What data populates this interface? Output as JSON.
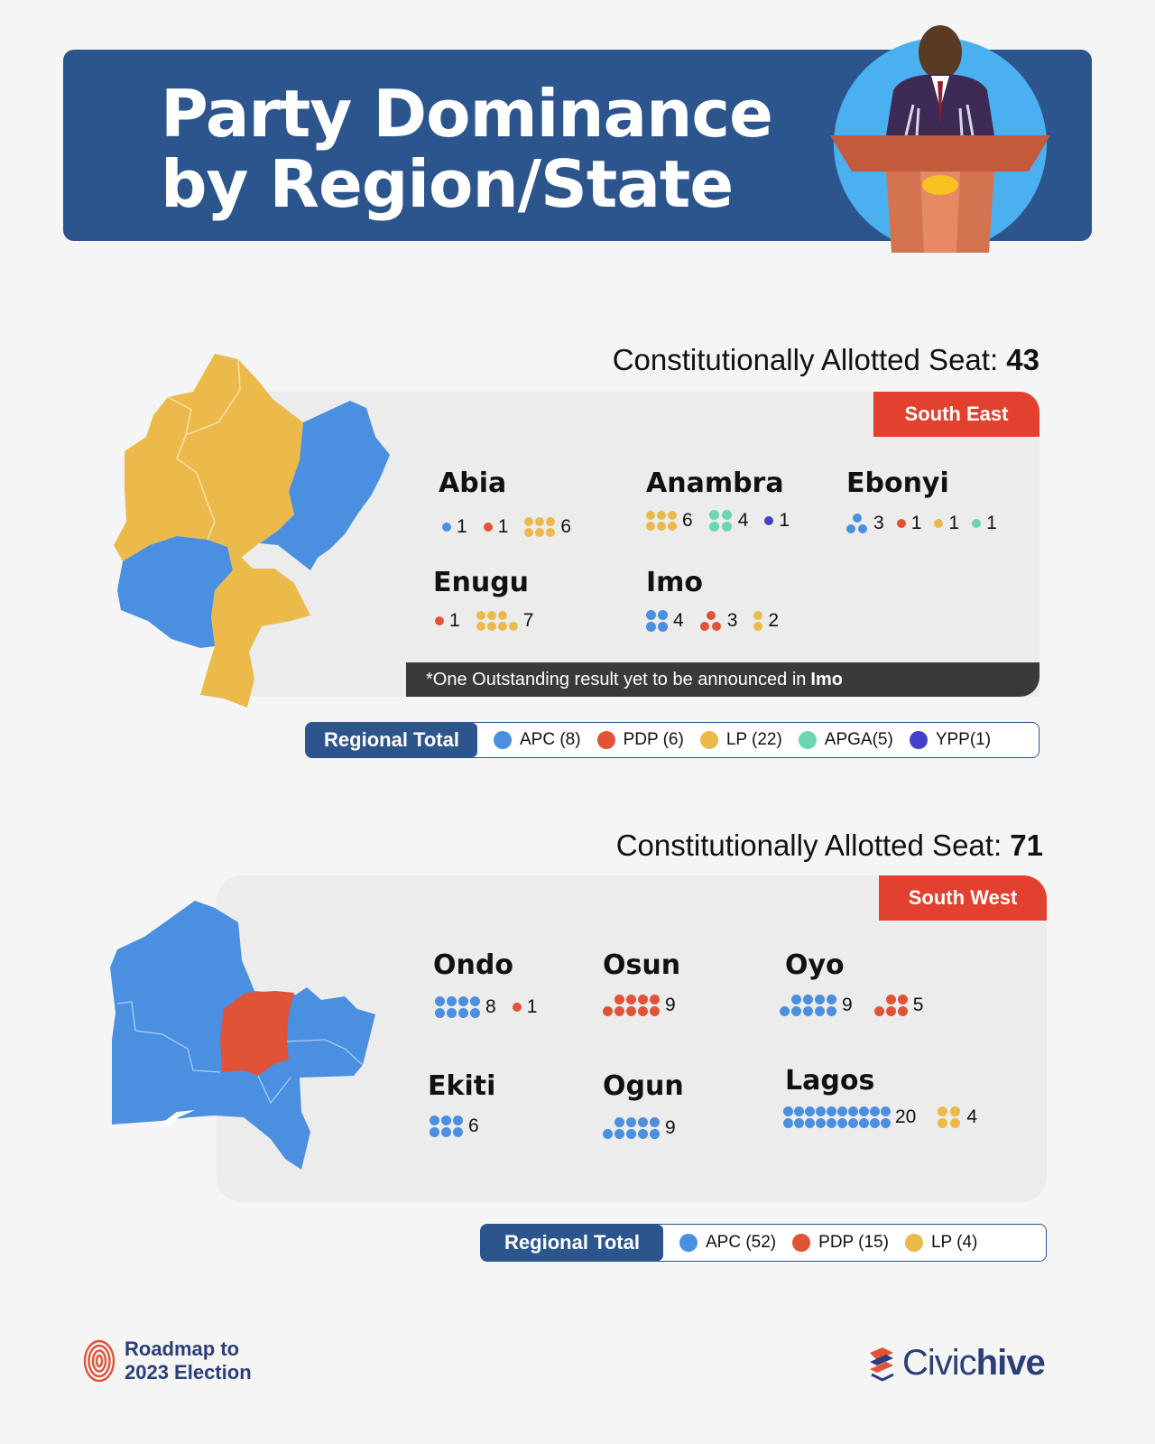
{
  "colors": {
    "APC": "#4a8fe0",
    "PDP": "#e15336",
    "LP": "#ebba4a",
    "APGA": "#6dd4b4",
    "YPP": "#4340cc"
  },
  "header": {
    "title_line1": "Party Dominance",
    "title_line2": "by Region/State"
  },
  "south_east": {
    "seat_label": "Constitutionally Allotted Seat:",
    "seat_count": "43",
    "region": "South East",
    "states": [
      {
        "name": "Abia",
        "counts": [
          {
            "party": "APC",
            "n": "1"
          },
          {
            "party": "PDP",
            "n": "1"
          },
          {
            "party": "LP",
            "n": "6"
          }
        ]
      },
      {
        "name": "Anambra",
        "counts": [
          {
            "party": "LP",
            "n": "6"
          },
          {
            "party": "APGA",
            "n": "4"
          },
          {
            "party": "YPP",
            "n": "1"
          }
        ]
      },
      {
        "name": "Ebonyi",
        "counts": [
          {
            "party": "APC",
            "n": "3"
          },
          {
            "party": "PDP",
            "n": "1"
          },
          {
            "party": "LP",
            "n": "1"
          },
          {
            "party": "APGA",
            "n": "1"
          }
        ]
      },
      {
        "name": "Enugu",
        "counts": [
          {
            "party": "PDP",
            "n": "1"
          },
          {
            "party": "LP",
            "n": "7"
          }
        ]
      },
      {
        "name": "Imo",
        "counts": [
          {
            "party": "APC",
            "n": "4"
          },
          {
            "party": "PDP",
            "n": "3"
          },
          {
            "party": "LP",
            "n": "2"
          }
        ]
      }
    ],
    "note_text": "*One Outstanding result yet to be announced in",
    "note_state": "Imo",
    "total_label": "Regional Total",
    "totals": [
      {
        "party": "APC",
        "label": "APC (8)"
      },
      {
        "party": "PDP",
        "label": "PDP (6)"
      },
      {
        "party": "LP",
        "label": "LP (22)"
      },
      {
        "party": "APGA",
        "label": "APGA(5)"
      },
      {
        "party": "YPP",
        "label": "YPP(1)"
      }
    ]
  },
  "south_west": {
    "seat_label": "Constitutionally Allotted Seat:",
    "seat_count": "71",
    "region": "South West",
    "states": [
      {
        "name": "Ondo",
        "counts": [
          {
            "party": "APC",
            "n": "8"
          },
          {
            "party": "PDP",
            "n": "1"
          }
        ]
      },
      {
        "name": "Osun",
        "counts": [
          {
            "party": "PDP",
            "n": "9"
          }
        ]
      },
      {
        "name": "Oyo",
        "counts": [
          {
            "party": "APC",
            "n": "9"
          },
          {
            "party": "PDP",
            "n": "5"
          }
        ]
      },
      {
        "name": "Ekiti",
        "counts": [
          {
            "party": "APC",
            "n": "6"
          }
        ]
      },
      {
        "name": "Ogun",
        "counts": [
          {
            "party": "APC",
            "n": "9"
          }
        ]
      },
      {
        "name": "Lagos",
        "counts": [
          {
            "party": "APC",
            "n": "20"
          },
          {
            "party": "LP",
            "n": "4"
          }
        ]
      }
    ],
    "total_label": "Regional Total",
    "totals": [
      {
        "party": "APC",
        "label": "APC (52)"
      },
      {
        "party": "PDP",
        "label": "PDP (15)"
      },
      {
        "party": "LP",
        "label": "LP (4)"
      }
    ]
  },
  "footer": {
    "left_line1": "Roadmap to",
    "left_line2": "2023 Election",
    "brand_light": "Civic",
    "brand_bold": "hive"
  }
}
